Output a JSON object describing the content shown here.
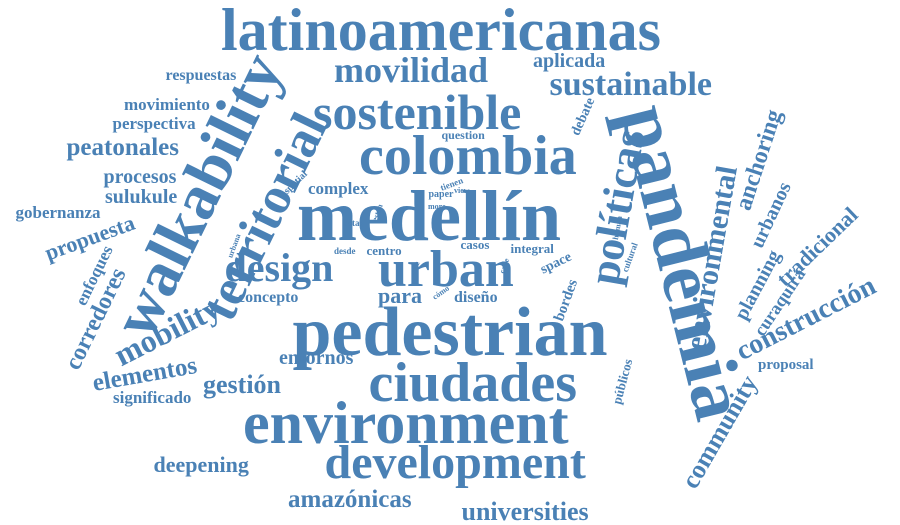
{
  "cloud": {
    "color": "#4a81b5",
    "words": [
      {
        "id": "latinoamericanas",
        "text": "latinoamericanas"
      },
      {
        "id": "movilidad",
        "text": "movilidad"
      },
      {
        "id": "aplicada",
        "text": "aplicada"
      },
      {
        "id": "respuestas",
        "text": "respuestas"
      },
      {
        "id": "sustainable",
        "text": "sustainable"
      },
      {
        "id": "walkability",
        "text": "walkability"
      },
      {
        "id": "sostenible",
        "text": "sostenible"
      },
      {
        "id": "movimiento",
        "text": "movimiento"
      },
      {
        "id": "perspectiva",
        "text": "perspectiva"
      },
      {
        "id": "colombia",
        "text": "colombia"
      },
      {
        "id": "pandemia",
        "text": "pandemia"
      },
      {
        "id": "question",
        "text": "question"
      },
      {
        "id": "debate",
        "text": "debate"
      },
      {
        "id": "anchoring",
        "text": "anchoring"
      },
      {
        "id": "peatonales",
        "text": "peatonales"
      },
      {
        "id": "politicas",
        "text": "políticas"
      },
      {
        "id": "territorial",
        "text": "territorial"
      },
      {
        "id": "procesos",
        "text": "procesos"
      },
      {
        "id": "sulukule",
        "text": "sulukule"
      },
      {
        "id": "complex",
        "text": "complex"
      },
      {
        "id": "spatial",
        "text": "spatial"
      },
      {
        "id": "tienen",
        "text": "tienen"
      },
      {
        "id": "paper",
        "text": "paper"
      },
      {
        "id": "view",
        "text": "view"
      },
      {
        "id": "more",
        "text": "more"
      },
      {
        "id": "medellin",
        "text": "medellín"
      },
      {
        "id": "environmental",
        "text": "environmental"
      },
      {
        "id": "gobernanza",
        "text": "gobernanza"
      },
      {
        "id": "propuesta",
        "text": "propuesta"
      },
      {
        "id": "estan",
        "text": "están"
      },
      {
        "id": "estas",
        "text": "estas"
      },
      {
        "id": "human",
        "text": "human"
      },
      {
        "id": "urbanos",
        "text": "urbanos"
      },
      {
        "id": "tradicional",
        "text": "tradicional"
      },
      {
        "id": "urbana",
        "text": "urbana"
      },
      {
        "id": "enfoques",
        "text": "enfoques"
      },
      {
        "id": "desde",
        "text": "desde"
      },
      {
        "id": "centro",
        "text": "centro"
      },
      {
        "id": "casos",
        "text": "casos"
      },
      {
        "id": "integral",
        "text": "integral"
      },
      {
        "id": "cultural",
        "text": "cultural"
      },
      {
        "id": "design",
        "text": "design"
      },
      {
        "id": "urban",
        "text": "urban"
      },
      {
        "id": "role",
        "text": "role"
      },
      {
        "id": "calle",
        "text": "calle"
      },
      {
        "id": "space",
        "text": "space"
      },
      {
        "id": "planning",
        "text": "planning"
      },
      {
        "id": "corredores",
        "text": "corredores"
      },
      {
        "id": "para",
        "text": "para"
      },
      {
        "id": "como",
        "text": "cómo"
      },
      {
        "id": "diseno",
        "text": "diseño"
      },
      {
        "id": "bordes",
        "text": "bordes"
      },
      {
        "id": "curaquiri",
        "text": "curaquirá"
      },
      {
        "id": "construccion",
        "text": "construcción"
      },
      {
        "id": "concepto",
        "text": "concepto"
      },
      {
        "id": "mobility",
        "text": "mobility"
      },
      {
        "id": "pedestrian",
        "text": "pedestrian"
      },
      {
        "id": "entornos",
        "text": "entornos"
      },
      {
        "id": "elementos",
        "text": "elementos"
      },
      {
        "id": "ciudades",
        "text": "ciudades"
      },
      {
        "id": "publicos",
        "text": "públicos"
      },
      {
        "id": "proposal",
        "text": "proposal"
      },
      {
        "id": "gestion",
        "text": "gestión"
      },
      {
        "id": "significado",
        "text": "significado"
      },
      {
        "id": "environment",
        "text": "environment"
      },
      {
        "id": "community",
        "text": "community"
      },
      {
        "id": "deepening",
        "text": "deepening"
      },
      {
        "id": "development",
        "text": "development"
      },
      {
        "id": "amazonicas",
        "text": "amazónicas"
      },
      {
        "id": "universities",
        "text": "universities"
      }
    ]
  }
}
